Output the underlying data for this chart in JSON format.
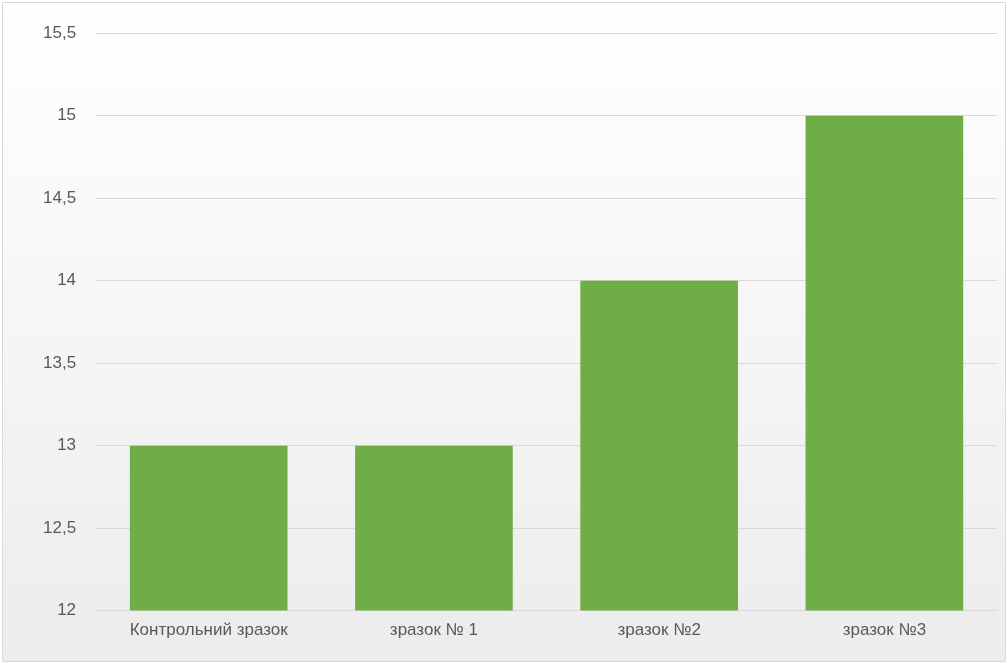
{
  "chart_data": {
    "type": "bar",
    "categories": [
      "Контрольний зразок",
      "зразок № 1",
      "зразок №2",
      "зразок №3"
    ],
    "values": [
      13,
      13,
      14,
      15
    ],
    "color": "#70ad47",
    "ylim": [
      12,
      15.5
    ],
    "yticks": [
      12,
      {
        "value": 12.5,
        "label": "12,5"
      },
      13,
      {
        "value": 13.5,
        "label": "13,5"
      },
      14,
      {
        "value": 14.5,
        "label": "14,5"
      },
      15,
      {
        "value": 15.5,
        "label": "15,5"
      }
    ],
    "grid": "y"
  }
}
